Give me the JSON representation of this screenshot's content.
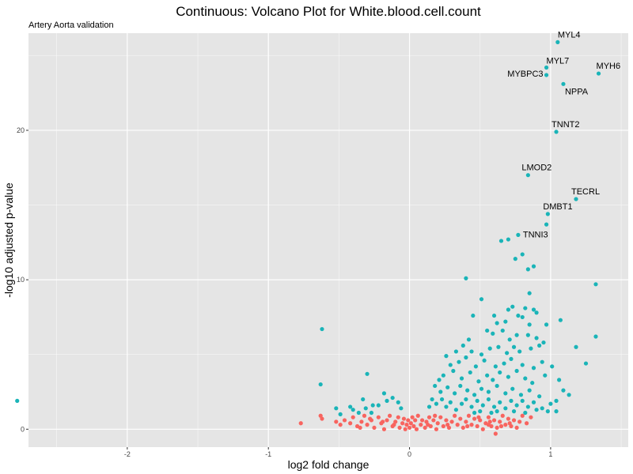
{
  "chart_data": {
    "type": "scatter",
    "title": "Continuous: Volcano Plot for White.blood.cell.count",
    "subtitle": "Artery Aorta validation",
    "xlabel": "log2 fold change",
    "ylabel": "-log10 adjusted p-value",
    "xlim": [
      -2.7,
      1.55
    ],
    "ylim": [
      -1.2,
      26.5
    ],
    "x_ticks": [
      -2,
      -1,
      0,
      1
    ],
    "y_ticks": [
      0,
      10,
      20
    ],
    "grid": true,
    "colors": {
      "significant": "#1ab4b8",
      "not_significant": "#f8645f",
      "panel_bg": "#e5e5e5",
      "grid_major": "#ffffff"
    },
    "labeled_points": [
      {
        "label": "MYL4",
        "x": 1.05,
        "y": 25.9
      },
      {
        "label": "MYL7",
        "x": 0.97,
        "y": 24.2
      },
      {
        "label": "MYBPC3",
        "x": 0.97,
        "y": 23.7
      },
      {
        "label": "MYH6",
        "x": 1.34,
        "y": 23.8
      },
      {
        "label": "NPPA",
        "x": 1.09,
        "y": 23.1
      },
      {
        "label": "TNNT2",
        "x": 1.04,
        "y": 19.9
      },
      {
        "label": "LMOD2",
        "x": 0.84,
        "y": 17.0
      },
      {
        "label": "TECRL",
        "x": 1.18,
        "y": 15.4
      },
      {
        "label": "DMBT1",
        "x": 0.98,
        "y": 14.4
      },
      {
        "label": "TNNI3",
        "x": 0.77,
        "y": 13.0
      }
    ],
    "significant_points": [
      [
        -2.78,
        1.9
      ],
      [
        -0.62,
        6.7
      ],
      [
        -0.63,
        3.0
      ],
      [
        -0.52,
        1.4
      ],
      [
        -0.49,
        1.0
      ],
      [
        0.97,
        13.7
      ],
      [
        0.65,
        12.6
      ],
      [
        0.7,
        12.7
      ],
      [
        0.75,
        11.4
      ],
      [
        0.8,
        11.7
      ],
      [
        0.88,
        10.9
      ],
      [
        0.84,
        10.7
      ],
      [
        0.4,
        10.1
      ],
      [
        1.32,
        9.7
      ],
      [
        0.85,
        9.1
      ],
      [
        0.51,
        8.7
      ],
      [
        0.6,
        7.6
      ],
      [
        0.7,
        8.0
      ],
      [
        0.73,
        8.2
      ],
      [
        0.77,
        7.6
      ],
      [
        0.82,
        8.1
      ],
      [
        0.88,
        8.0
      ],
      [
        0.9,
        7.8
      ],
      [
        0.45,
        7.6
      ],
      [
        0.42,
        6.0
      ],
      [
        0.62,
        7.1
      ],
      [
        0.68,
        7.2
      ],
      [
        0.8,
        7.5
      ],
      [
        0.85,
        7.0
      ],
      [
        0.97,
        7.0
      ],
      [
        1.07,
        7.3
      ],
      [
        0.55,
        6.6
      ],
      [
        0.59,
        6.4
      ],
      [
        0.66,
        6.6
      ],
      [
        0.71,
        6.0
      ],
      [
        0.76,
        6.3
      ],
      [
        0.84,
        6.3
      ],
      [
        0.9,
        6.1
      ],
      [
        0.95,
        5.8
      ],
      [
        1.32,
        6.2
      ],
      [
        0.33,
        5.2
      ],
      [
        0.38,
        5.6
      ],
      [
        0.44,
        5.2
      ],
      [
        0.51,
        5.0
      ],
      [
        0.57,
        5.4
      ],
      [
        0.63,
        5.5
      ],
      [
        0.69,
        5.1
      ],
      [
        0.74,
        5.5
      ],
      [
        0.78,
        5.2
      ],
      [
        0.86,
        5.4
      ],
      [
        0.92,
        5.6
      ],
      [
        1.18,
        5.5
      ],
      [
        0.26,
        4.9
      ],
      [
        0.29,
        4.3
      ],
      [
        0.35,
        4.5
      ],
      [
        0.4,
        4.8
      ],
      [
        0.47,
        4.2
      ],
      [
        0.53,
        4.6
      ],
      [
        0.61,
        4.2
      ],
      [
        0.67,
        4.4
      ],
      [
        0.72,
        4.7
      ],
      [
        0.8,
        4.3
      ],
      [
        0.88,
        4.1
      ],
      [
        0.94,
        4.5
      ],
      [
        1.01,
        4.2
      ],
      [
        1.25,
        4.4
      ],
      [
        -0.3,
        3.7
      ],
      [
        0.21,
        3.3
      ],
      [
        0.24,
        3.6
      ],
      [
        0.31,
        3.9
      ],
      [
        0.37,
        3.4
      ],
      [
        0.43,
        3.8
      ],
      [
        0.49,
        3.2
      ],
      [
        0.55,
        3.6
      ],
      [
        0.59,
        3.3
      ],
      [
        0.64,
        3.8
      ],
      [
        0.7,
        3.5
      ],
      [
        0.76,
        3.9
      ],
      [
        0.82,
        3.4
      ],
      [
        0.87,
        3.1
      ],
      [
        0.96,
        3.6
      ],
      [
        1.06,
        3.3
      ],
      [
        0.18,
        2.9
      ],
      [
        0.22,
        2.5
      ],
      [
        0.27,
        2.8
      ],
      [
        0.32,
        2.4
      ],
      [
        0.36,
        2.9
      ],
      [
        0.41,
        2.6
      ],
      [
        0.46,
        2.3
      ],
      [
        0.51,
        2.7
      ],
      [
        0.56,
        2.5
      ],
      [
        0.62,
        2.9
      ],
      [
        0.68,
        2.4
      ],
      [
        0.73,
        2.7
      ],
      [
        0.79,
        2.3
      ],
      [
        0.85,
        2.6
      ],
      [
        0.92,
        2.2
      ],
      [
        1.09,
        2.6
      ],
      [
        1.13,
        2.3
      ],
      [
        1.04,
        1.9
      ],
      [
        -0.18,
        2.4
      ],
      [
        -0.26,
        1.6
      ],
      [
        -0.33,
        2.0
      ],
      [
        -0.4,
        1.3
      ],
      [
        -0.42,
        1.5
      ],
      [
        -0.36,
        1.1
      ],
      [
        -0.31,
        1.4
      ],
      [
        -0.27,
        1.1
      ],
      [
        -0.22,
        1.6
      ],
      [
        -0.16,
        1.9
      ],
      [
        -0.12,
        2.1
      ],
      [
        -0.08,
        1.8
      ],
      [
        -0.06,
        1.4
      ],
      [
        0.14,
        1.5
      ],
      [
        0.16,
        2.0
      ],
      [
        0.19,
        1.7
      ],
      [
        0.23,
        2.0
      ],
      [
        0.26,
        1.5
      ],
      [
        0.29,
        1.8
      ],
      [
        0.33,
        1.3
      ],
      [
        0.37,
        1.7
      ],
      [
        0.4,
        2.0
      ],
      [
        0.44,
        1.5
      ],
      [
        0.48,
        1.9
      ],
      [
        0.52,
        1.6
      ],
      [
        0.56,
        2.0
      ],
      [
        0.6,
        1.5
      ],
      [
        0.64,
        1.8
      ],
      [
        0.68,
        1.4
      ],
      [
        0.72,
        1.9
      ],
      [
        0.76,
        1.6
      ],
      [
        0.8,
        1.9
      ],
      [
        0.84,
        1.5
      ],
      [
        0.88,
        1.8
      ],
      [
        0.94,
        1.4
      ],
      [
        1.0,
        1.7
      ],
      [
        1.04,
        1.2
      ],
      [
        0.62,
        1.2
      ],
      [
        0.74,
        1.2
      ],
      [
        0.82,
        1.1
      ],
      [
        0.9,
        1.3
      ],
      [
        0.98,
        1.2
      ],
      [
        0.58,
        1.1
      ],
      [
        0.5,
        1.2
      ],
      [
        0.46,
        1.1
      ]
    ],
    "not_significant_points": [
      [
        -0.77,
        0.4
      ],
      [
        -0.63,
        0.9
      ],
      [
        -0.62,
        0.7
      ],
      [
        -0.52,
        0.5
      ],
      [
        -0.49,
        0.3
      ],
      [
        -0.46,
        0.6
      ],
      [
        -0.42,
        0.4
      ],
      [
        -0.4,
        0.8
      ],
      [
        -0.37,
        0.2
      ],
      [
        -0.34,
        0.5
      ],
      [
        -0.32,
        0.9
      ],
      [
        -0.3,
        0.3
      ],
      [
        -0.27,
        0.6
      ],
      [
        -0.25,
        0.1
      ],
      [
        -0.22,
        0.8
      ],
      [
        -0.2,
        0.4
      ],
      [
        -0.18,
        0.0
      ],
      [
        -0.16,
        0.6
      ],
      [
        -0.14,
        0.9
      ],
      [
        -0.12,
        0.2
      ],
      [
        -0.1,
        0.5
      ],
      [
        -0.08,
        0.8
      ],
      [
        -0.07,
        0.1
      ],
      [
        -0.05,
        0.4
      ],
      [
        -0.04,
        0.7
      ],
      [
        -0.03,
        0.0
      ],
      [
        -0.02,
        0.3
      ],
      [
        -0.01,
        0.6
      ],
      [
        0.0,
        0.1
      ],
      [
        0.01,
        0.4
      ],
      [
        0.02,
        0.8
      ],
      [
        0.03,
        0.2
      ],
      [
        0.04,
        0.6
      ],
      [
        0.05,
        0.0
      ],
      [
        0.06,
        0.9
      ],
      [
        0.08,
        0.3
      ],
      [
        0.09,
        0.6
      ],
      [
        0.11,
        0.1
      ],
      [
        0.12,
        0.5
      ],
      [
        0.14,
        0.8
      ],
      [
        0.15,
        0.2
      ],
      [
        0.17,
        0.6
      ],
      [
        0.19,
        0.0
      ],
      [
        0.2,
        0.4
      ],
      [
        0.22,
        0.8
      ],
      [
        0.24,
        0.2
      ],
      [
        0.26,
        0.6
      ],
      [
        0.28,
        0.1
      ],
      [
        0.3,
        0.5
      ],
      [
        0.32,
        0.9
      ],
      [
        0.34,
        0.3
      ],
      [
        0.36,
        0.7
      ],
      [
        0.38,
        0.1
      ],
      [
        0.4,
        0.5
      ],
      [
        0.42,
        0.9
      ],
      [
        0.44,
        0.3
      ],
      [
        0.46,
        0.7
      ],
      [
        0.48,
        0.2
      ],
      [
        0.5,
        0.6
      ],
      [
        0.52,
        0.0
      ],
      [
        0.54,
        0.4
      ],
      [
        0.56,
        0.8
      ],
      [
        0.58,
        0.2
      ],
      [
        0.6,
        0.6
      ],
      [
        0.62,
        0.1
      ],
      [
        0.64,
        0.5
      ],
      [
        0.66,
        0.9
      ],
      [
        0.68,
        0.3
      ],
      [
        0.7,
        0.7
      ],
      [
        0.72,
        0.2
      ],
      [
        0.74,
        0.6
      ],
      [
        0.76,
        0.1
      ],
      [
        0.78,
        0.5
      ],
      [
        0.8,
        0.9
      ],
      [
        0.83,
        0.4
      ],
      [
        0.86,
        0.8
      ],
      [
        0.61,
        -0.3
      ],
      [
        0.56,
        0.3
      ],
      [
        -0.35,
        0.1
      ],
      [
        -0.28,
        0.7
      ],
      [
        -0.19,
        0.5
      ],
      [
        -0.11,
        0.3
      ],
      [
        0.13,
        0.3
      ],
      [
        0.27,
        0.3
      ],
      [
        0.41,
        0.2
      ],
      [
        0.49,
        0.8
      ],
      [
        0.57,
        0.5
      ],
      [
        0.65,
        0.2
      ],
      [
        0.71,
        0.4
      ],
      [
        0.18,
        0.9
      ]
    ]
  }
}
